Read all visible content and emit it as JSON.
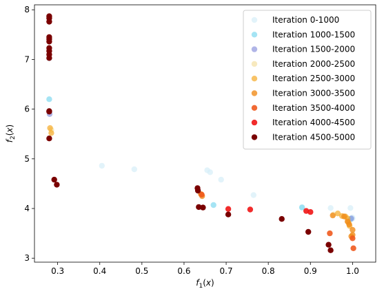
{
  "chart_data": {
    "type": "scatter",
    "xlabel": "f_1(x)",
    "ylabel": "f_2(x)",
    "xlim": [
      0.245,
      1.055
    ],
    "ylim": [
      2.92,
      8.1
    ],
    "xticks": [
      0.3,
      0.4,
      0.5,
      0.6,
      0.7,
      0.8,
      0.9,
      1.0
    ],
    "yticks": [
      3,
      4,
      5,
      6,
      7,
      8
    ],
    "xtick_labels": [
      "0.3",
      "0.4",
      "0.5",
      "0.6",
      "0.7",
      "0.8",
      "0.9",
      "1.0"
    ],
    "ytick_labels": [
      "3",
      "4",
      "5",
      "6",
      "7",
      "8"
    ],
    "grid": false,
    "legend_position": "top-right",
    "series": [
      {
        "name": "Iteration 0-1000",
        "color": "#d6eef8",
        "alpha": 0.7,
        "points": [
          [
            0.28,
            7.02
          ],
          [
            0.405,
            4.86
          ],
          [
            0.482,
            4.79
          ],
          [
            0.655,
            4.77
          ],
          [
            0.662,
            4.73
          ],
          [
            0.688,
            4.58
          ],
          [
            0.765,
            4.27
          ],
          [
            0.88,
            4.03
          ],
          [
            0.948,
            4.01
          ],
          [
            0.995,
            4.01
          ],
          [
            0.997,
            3.78
          ],
          [
            0.999,
            3.82
          ],
          [
            1.0,
            3.8
          ]
        ]
      },
      {
        "name": "Iteration 1000-1500",
        "color": "#7fd8ef",
        "alpha": 0.7,
        "points": [
          [
            0.28,
            6.2
          ],
          [
            0.67,
            4.07
          ],
          [
            0.88,
            4.02
          ],
          [
            0.996,
            3.79
          ]
        ]
      },
      {
        "name": "Iteration 1500-2000",
        "color": "#8f96dd",
        "alpha": 0.7,
        "points": [
          [
            0.281,
            5.9
          ],
          [
            0.997,
            3.8
          ]
        ]
      },
      {
        "name": "Iteration 2000-2500",
        "color": "#f3e0a3",
        "alpha": 0.7,
        "points": [
          [
            0.285,
            5.58
          ],
          [
            0.955,
            3.88
          ]
        ]
      },
      {
        "name": "Iteration 2500-3000",
        "color": "#f5a927",
        "alpha": 0.7,
        "points": [
          [
            0.282,
            5.62
          ],
          [
            0.285,
            5.52
          ],
          [
            0.965,
            3.9
          ],
          [
            0.975,
            3.85
          ],
          [
            0.983,
            3.84
          ],
          [
            0.988,
            3.8
          ],
          [
            0.99,
            3.72
          ],
          [
            0.993,
            3.65
          ]
        ]
      },
      {
        "name": "Iteration 3000-3500",
        "color": "#f08c1a",
        "alpha": 0.8,
        "points": [
          [
            0.64,
            4.29
          ],
          [
            0.643,
            4.25
          ],
          [
            0.953,
            3.86
          ],
          [
            0.98,
            3.84
          ],
          [
            0.988,
            3.74
          ],
          [
            0.992,
            3.68
          ],
          [
            1.0,
            3.57
          ],
          [
            1.0,
            3.47
          ],
          [
            0.997,
            3.44
          ]
        ]
      },
      {
        "name": "Iteration 3500-4000",
        "color": "#f05a1e",
        "alpha": 0.9,
        "points": [
          [
            0.642,
            4.28
          ],
          [
            0.946,
            3.5
          ],
          [
            1.0,
            3.4
          ],
          [
            1.002,
            3.2
          ]
        ]
      },
      {
        "name": "Iteration 4000-4500",
        "color": "#f01515",
        "alpha": 0.9,
        "points": [
          [
            0.705,
            3.99
          ],
          [
            0.757,
            3.98
          ],
          [
            0.89,
            3.95
          ],
          [
            0.9,
            3.93
          ]
        ]
      },
      {
        "name": "Iteration 4500-5000",
        "color": "#7a0000",
        "alpha": 1.0,
        "points": [
          [
            0.28,
            7.87
          ],
          [
            0.28,
            7.83
          ],
          [
            0.28,
            7.76
          ],
          [
            0.28,
            7.45
          ],
          [
            0.28,
            7.41
          ],
          [
            0.28,
            7.36
          ],
          [
            0.28,
            7.23
          ],
          [
            0.28,
            7.17
          ],
          [
            0.28,
            7.1
          ],
          [
            0.28,
            7.03
          ],
          [
            0.28,
            5.96
          ],
          [
            0.28,
            5.95
          ],
          [
            0.28,
            5.41
          ],
          [
            0.292,
            4.58
          ],
          [
            0.298,
            4.48
          ],
          [
            0.632,
            4.41
          ],
          [
            0.633,
            4.36
          ],
          [
            0.635,
            4.03
          ],
          [
            0.645,
            4.02
          ],
          [
            0.705,
            3.88
          ],
          [
            0.832,
            3.79
          ],
          [
            0.895,
            3.53
          ],
          [
            0.943,
            3.27
          ],
          [
            0.948,
            3.16
          ]
        ]
      }
    ]
  }
}
